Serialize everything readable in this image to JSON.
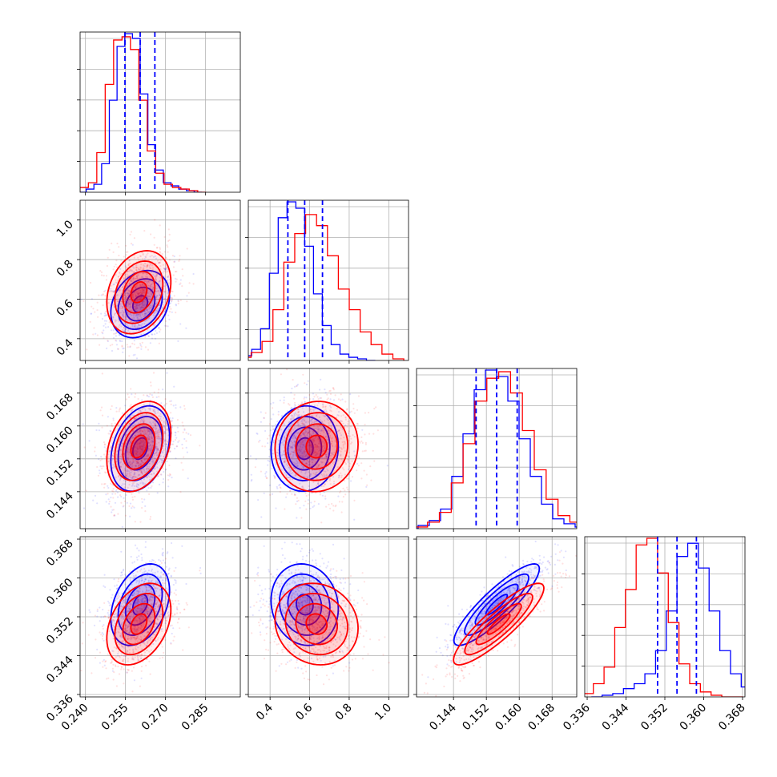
{
  "chart_data": {
    "type": "corner",
    "grid": true,
    "parameters": [
      {
        "range": [
          0.238,
          0.298
        ],
        "ticks": [
          0.24,
          0.255,
          0.27,
          0.285
        ],
        "tick_labels": [
          "0.240",
          "0.255",
          "0.270",
          "0.285"
        ]
      },
      {
        "range": [
          0.29,
          1.1
        ],
        "ticks": [
          0.4,
          0.6,
          0.8,
          1.0
        ],
        "tick_labels": [
          "0.4",
          "0.6",
          "0.8",
          "1.0"
        ]
      },
      {
        "range": [
          0.135,
          0.174
        ],
        "ticks": [
          0.144,
          0.152,
          0.16,
          0.168
        ],
        "tick_labels": [
          "0.144",
          "0.152",
          "0.160",
          "0.168"
        ]
      },
      {
        "range": [
          0.3355,
          0.3685
        ],
        "ticks": [
          0.336,
          0.344,
          0.352,
          0.36,
          0.368
        ],
        "tick_labels": [
          "0.336",
          "0.344",
          "0.352",
          "0.360",
          "0.368"
        ]
      }
    ],
    "series": [
      {
        "color": "#0000ff",
        "mean": [
          0.2605,
          0.575,
          0.1545,
          0.3545
        ],
        "std": [
          0.0055,
          0.085,
          0.0052,
          0.0042
        ],
        "quantiles": [
          [
            0.2548,
            0.2605,
            0.266
          ],
          [
            0.49,
            0.575,
            0.665
          ],
          [
            0.1495,
            0.1545,
            0.1595
          ],
          [
            0.3505,
            0.3545,
            0.3585
          ]
        ],
        "hist": [
          [
            0.0,
            0.02,
            0.05,
            0.18,
            0.58,
            0.92,
            1.0,
            0.97,
            0.62,
            0.3,
            0.14,
            0.06,
            0.04,
            0.02,
            0.01,
            0.0
          ],
          [
            0.0,
            0.03,
            0.07,
            0.2,
            0.55,
            0.9,
            1.0,
            0.96,
            0.72,
            0.42,
            0.22,
            0.1,
            0.04,
            0.02,
            0.01,
            0.0
          ],
          [
            0.0,
            0.02,
            0.05,
            0.12,
            0.32,
            0.58,
            0.85,
            0.97,
            0.93,
            0.78,
            0.55,
            0.32,
            0.15,
            0.06,
            0.03,
            0.01
          ],
          [
            0.0,
            0.01,
            0.02,
            0.05,
            0.08,
            0.14,
            0.28,
            0.52,
            0.85,
            0.93,
            0.78,
            0.52,
            0.28,
            0.14,
            0.06,
            0.03
          ]
        ]
      },
      {
        "color": "#ff0000",
        "mean": [
          0.26,
          0.635,
          0.155,
          0.3505
        ],
        "std": [
          0.006,
          0.105,
          0.0055,
          0.0042
        ],
        "quantiles": [
          [
            0.254,
            0.26,
            0.266
          ],
          [
            0.53,
            0.635,
            0.74
          ],
          [
            0.1495,
            0.155,
            0.1605
          ],
          [
            0.3463,
            0.3505,
            0.3547
          ]
        ],
        "hist": [
          [
            0.0,
            0.03,
            0.06,
            0.25,
            0.68,
            0.96,
            0.98,
            0.9,
            0.58,
            0.26,
            0.12,
            0.05,
            0.03,
            0.02,
            0.01,
            0.0
          ],
          [
            0.0,
            0.02,
            0.05,
            0.12,
            0.32,
            0.62,
            0.8,
            0.92,
            0.85,
            0.66,
            0.45,
            0.32,
            0.18,
            0.1,
            0.04,
            0.01
          ],
          [
            0.0,
            0.01,
            0.04,
            0.1,
            0.28,
            0.52,
            0.78,
            0.92,
            0.96,
            0.83,
            0.6,
            0.36,
            0.18,
            0.08,
            0.04,
            0.01
          ],
          [
            0.0,
            0.02,
            0.08,
            0.18,
            0.42,
            0.65,
            0.92,
            0.96,
            0.75,
            0.45,
            0.2,
            0.08,
            0.03,
            0.01,
            0.0,
            0.0
          ]
        ]
      }
    ],
    "correlations": {
      "blue": {
        "1-0": 0.25,
        "2-0": 0.3,
        "2-1": 0.05,
        "3-0": 0.35,
        "3-1": -0.1,
        "3-2": 0.88
      },
      "red": {
        "1-0": 0.25,
        "2-0": 0.3,
        "2-1": 0.05,
        "3-0": 0.35,
        "3-1": -0.1,
        "3-2": 0.88
      }
    }
  }
}
